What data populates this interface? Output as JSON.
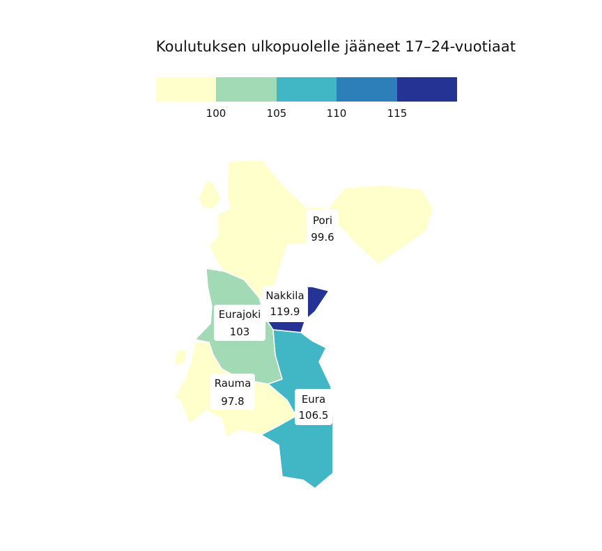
{
  "title": "Koulutuksen ulkopuolelle jääneet 17–24-vuotiaat",
  "legend": {
    "colors": [
      "#ffffcc",
      "#a1dab4",
      "#41b6c4",
      "#2c7fb8",
      "#253494"
    ],
    "ticks": [
      "100",
      "105",
      "110",
      "115"
    ]
  },
  "regions": [
    {
      "name": "Pori",
      "value": "99.6",
      "color": "#ffffcc"
    },
    {
      "name": "Nakkila",
      "value": "119.9",
      "color": "#253494"
    },
    {
      "name": "Eurajoki",
      "value": "103",
      "color": "#a1dab4"
    },
    {
      "name": "Rauma",
      "value": "97.8",
      "color": "#ffffcc"
    },
    {
      "name": "Eura",
      "value": "106.5",
      "color": "#41b6c4"
    }
  ]
}
